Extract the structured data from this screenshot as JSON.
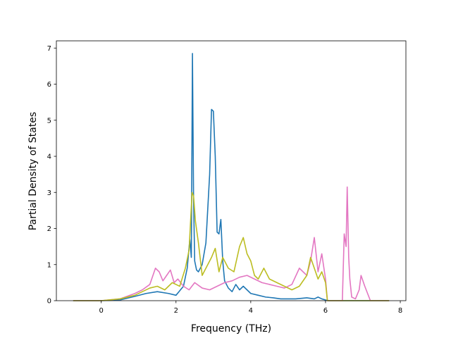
{
  "chart_data": {
    "type": "line",
    "title": "",
    "xlabel": "Frequency (THz)",
    "ylabel": "Partial Density of States",
    "xlim": [
      -1.2,
      8.15
    ],
    "ylim": [
      0,
      7.2
    ],
    "xticks": [
      0,
      2,
      4,
      6,
      8
    ],
    "yticks": [
      0,
      1,
      2,
      3,
      4,
      5,
      6,
      7
    ],
    "grid": false,
    "legend": "none",
    "series": [
      {
        "color": "#1f77b4",
        "x": [
          -0.75,
          0.0,
          0.5,
          0.9,
          1.2,
          1.5,
          1.8,
          2.0,
          2.2,
          2.3,
          2.37,
          2.41,
          2.44,
          2.47,
          2.5,
          2.55,
          2.6,
          2.7,
          2.8,
          2.9,
          2.95,
          3.0,
          3.05,
          3.1,
          3.15,
          3.2,
          3.25,
          3.3,
          3.4,
          3.5,
          3.6,
          3.7,
          3.8,
          3.9,
          4.0,
          4.2,
          4.4,
          4.6,
          4.8,
          5.0,
          5.2,
          5.5,
          5.7,
          5.8,
          5.9,
          6.0,
          6.1,
          6.5,
          7.0,
          7.7
        ],
        "values": [
          0,
          0,
          0.02,
          0.12,
          0.2,
          0.25,
          0.2,
          0.15,
          0.4,
          0.9,
          1.7,
          1.2,
          6.85,
          2.8,
          1.1,
          0.85,
          0.8,
          1.0,
          1.6,
          3.5,
          5.3,
          5.25,
          4.0,
          1.9,
          1.85,
          2.25,
          1.1,
          0.55,
          0.35,
          0.25,
          0.45,
          0.3,
          0.4,
          0.3,
          0.2,
          0.15,
          0.1,
          0.08,
          0.05,
          0.05,
          0.05,
          0.08,
          0.05,
          0.1,
          0.05,
          0.02,
          0,
          0,
          0,
          0
        ]
      },
      {
        "color": "#e377c2",
        "x": [
          -0.75,
          0.0,
          0.5,
          0.9,
          1.1,
          1.3,
          1.45,
          1.55,
          1.65,
          1.75,
          1.85,
          1.95,
          2.05,
          2.2,
          2.35,
          2.5,
          2.7,
          2.9,
          3.1,
          3.3,
          3.5,
          3.7,
          3.9,
          4.1,
          4.3,
          4.5,
          4.7,
          4.9,
          5.1,
          5.3,
          5.5,
          5.6,
          5.7,
          5.8,
          5.9,
          6.0,
          6.05,
          6.2,
          6.45,
          6.5,
          6.55,
          6.58,
          6.62,
          6.65,
          6.7,
          6.8,
          6.9,
          6.95,
          7.05,
          7.2,
          7.7
        ],
        "values": [
          0,
          0,
          0.05,
          0.2,
          0.3,
          0.45,
          0.9,
          0.8,
          0.55,
          0.7,
          0.85,
          0.5,
          0.6,
          0.4,
          0.3,
          0.5,
          0.35,
          0.3,
          0.4,
          0.5,
          0.55,
          0.65,
          0.7,
          0.6,
          0.5,
          0.45,
          0.4,
          0.35,
          0.45,
          0.9,
          0.7,
          1.1,
          1.75,
          0.8,
          1.3,
          0.6,
          0,
          0,
          0,
          1.85,
          1.5,
          3.15,
          1.2,
          0.6,
          0.1,
          0.05,
          0.3,
          0.7,
          0.4,
          0,
          0
        ]
      },
      {
        "color": "#bcbd22",
        "x": [
          -0.75,
          0.0,
          0.5,
          0.9,
          1.1,
          1.3,
          1.5,
          1.7,
          1.9,
          2.1,
          2.25,
          2.35,
          2.43,
          2.47,
          2.52,
          2.6,
          2.7,
          2.8,
          2.95,
          3.05,
          3.15,
          3.25,
          3.4,
          3.55,
          3.7,
          3.8,
          3.9,
          4.0,
          4.1,
          4.2,
          4.35,
          4.5,
          4.7,
          4.9,
          5.1,
          5.3,
          5.5,
          5.6,
          5.7,
          5.8,
          5.9,
          6.0,
          6.05,
          6.2,
          7.7
        ],
        "values": [
          0,
          0,
          0.05,
          0.15,
          0.25,
          0.35,
          0.4,
          0.3,
          0.5,
          0.4,
          0.9,
          1.4,
          3.0,
          2.9,
          2.2,
          1.6,
          0.7,
          0.9,
          1.2,
          1.45,
          0.8,
          1.2,
          0.9,
          0.8,
          1.5,
          1.75,
          1.3,
          1.1,
          0.7,
          0.6,
          0.9,
          0.6,
          0.5,
          0.4,
          0.3,
          0.4,
          0.7,
          1.2,
          0.9,
          0.6,
          0.8,
          0.5,
          0,
          0,
          0
        ]
      }
    ]
  }
}
